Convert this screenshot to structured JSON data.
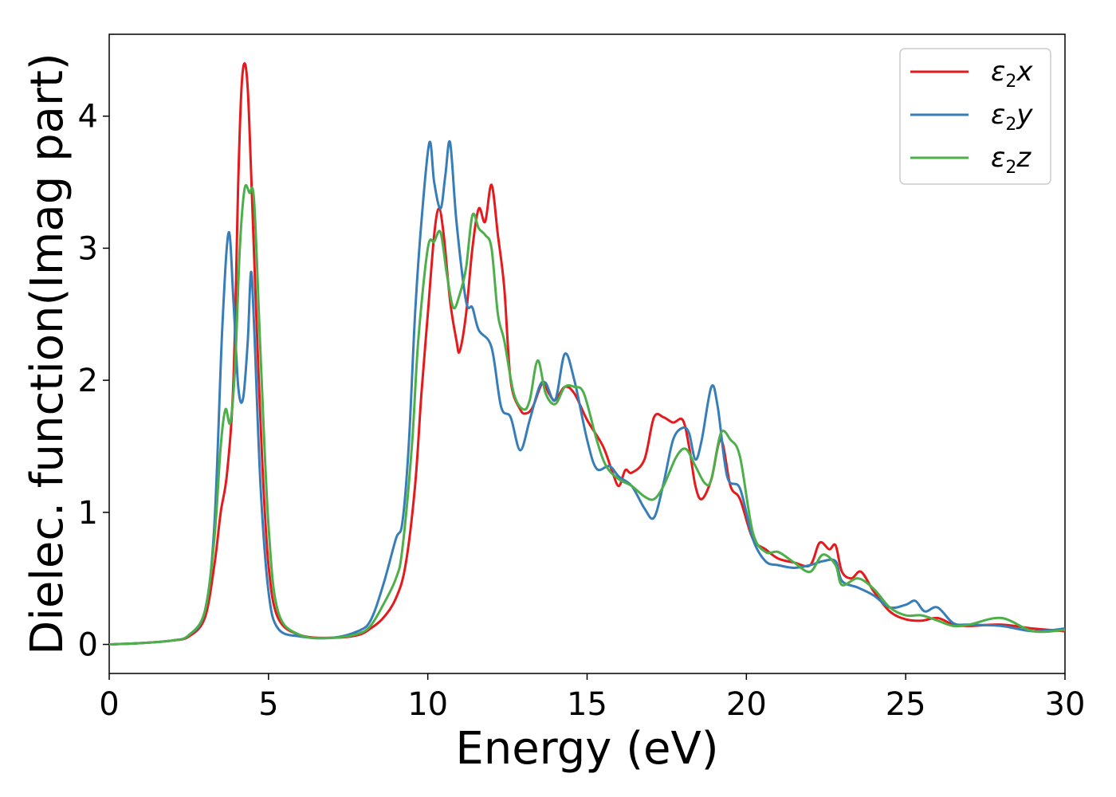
{
  "chart_data": {
    "type": "line",
    "xlabel": "Energy (eV)",
    "ylabel": "Dielec. function(Imag part)",
    "xlim": [
      0,
      30
    ],
    "ylim": [
      -0.22,
      4.62
    ],
    "xticks": [
      0,
      5,
      10,
      15,
      20,
      25,
      30
    ],
    "yticks": [
      0,
      1,
      2,
      3,
      4
    ],
    "grid": false,
    "legend_position": "top-right",
    "series": [
      {
        "name": "ε₂x",
        "label_base": "ε",
        "label_sub": "2",
        "label_var": "x",
        "color": "#e41a1c",
        "points": [
          [
            0,
            0.0
          ],
          [
            1,
            0.01
          ],
          [
            2,
            0.03
          ],
          [
            2.5,
            0.06
          ],
          [
            3,
            0.2
          ],
          [
            3.3,
            0.6
          ],
          [
            3.5,
            1.0
          ],
          [
            3.7,
            1.3
          ],
          [
            3.9,
            2.0
          ],
          [
            4.05,
            3.5
          ],
          [
            4.15,
            4.2
          ],
          [
            4.25,
            4.4
          ],
          [
            4.35,
            4.2
          ],
          [
            4.45,
            3.6
          ],
          [
            4.6,
            2.6
          ],
          [
            4.8,
            1.4
          ],
          [
            5,
            0.6
          ],
          [
            5.3,
            0.2
          ],
          [
            6,
            0.07
          ],
          [
            7,
            0.05
          ],
          [
            7.8,
            0.07
          ],
          [
            8.2,
            0.12
          ],
          [
            8.6,
            0.2
          ],
          [
            9,
            0.35
          ],
          [
            9.3,
            0.6
          ],
          [
            9.6,
            1.2
          ],
          [
            9.8,
            1.9
          ],
          [
            10,
            2.5
          ],
          [
            10.2,
            3.1
          ],
          [
            10.35,
            3.3
          ],
          [
            10.5,
            3.1
          ],
          [
            10.7,
            2.6
          ],
          [
            10.9,
            2.3
          ],
          [
            11,
            2.22
          ],
          [
            11.2,
            2.5
          ],
          [
            11.4,
            3.0
          ],
          [
            11.6,
            3.3
          ],
          [
            11.8,
            3.2
          ],
          [
            12,
            3.48
          ],
          [
            12.2,
            3.1
          ],
          [
            12.4,
            2.7
          ],
          [
            12.6,
            2.0
          ],
          [
            12.9,
            1.78
          ],
          [
            13.1,
            1.75
          ],
          [
            13.3,
            1.8
          ],
          [
            13.6,
            1.98
          ],
          [
            13.8,
            1.9
          ],
          [
            14,
            1.85
          ],
          [
            14.3,
            1.95
          ],
          [
            14.6,
            1.9
          ],
          [
            15,
            1.7
          ],
          [
            15.5,
            1.5
          ],
          [
            15.8,
            1.3
          ],
          [
            16,
            1.2
          ],
          [
            16.2,
            1.32
          ],
          [
            16.4,
            1.3
          ],
          [
            16.8,
            1.4
          ],
          [
            17.1,
            1.72
          ],
          [
            17.4,
            1.72
          ],
          [
            17.7,
            1.68
          ],
          [
            18,
            1.7
          ],
          [
            18.2,
            1.5
          ],
          [
            18.4,
            1.2
          ],
          [
            18.6,
            1.1
          ],
          [
            18.9,
            1.25
          ],
          [
            19.2,
            1.55
          ],
          [
            19.5,
            1.2
          ],
          [
            19.8,
            1.1
          ],
          [
            20.2,
            0.8
          ],
          [
            20.6,
            0.72
          ],
          [
            21,
            0.65
          ],
          [
            21.5,
            0.62
          ],
          [
            22,
            0.6
          ],
          [
            22.3,
            0.77
          ],
          [
            22.6,
            0.72
          ],
          [
            22.8,
            0.75
          ],
          [
            23,
            0.55
          ],
          [
            23.3,
            0.5
          ],
          [
            23.6,
            0.55
          ],
          [
            24,
            0.4
          ],
          [
            24.5,
            0.25
          ],
          [
            25,
            0.19
          ],
          [
            25.5,
            0.18
          ],
          [
            26,
            0.2
          ],
          [
            26.5,
            0.15
          ],
          [
            27,
            0.14
          ],
          [
            28,
            0.15
          ],
          [
            29,
            0.12
          ],
          [
            30,
            0.1
          ]
        ]
      },
      {
        "name": "ε₂y",
        "label_base": "ε",
        "label_sub": "2",
        "label_var": "y",
        "color": "#377eb8",
        "points": [
          [
            0,
            0.0
          ],
          [
            1,
            0.01
          ],
          [
            2,
            0.03
          ],
          [
            2.5,
            0.07
          ],
          [
            3,
            0.25
          ],
          [
            3.3,
            0.9
          ],
          [
            3.55,
            2.4
          ],
          [
            3.75,
            3.12
          ],
          [
            3.9,
            2.6
          ],
          [
            4.05,
            1.95
          ],
          [
            4.2,
            1.86
          ],
          [
            4.35,
            2.3
          ],
          [
            4.45,
            2.82
          ],
          [
            4.55,
            2.4
          ],
          [
            4.75,
            1.2
          ],
          [
            5,
            0.4
          ],
          [
            5.3,
            0.12
          ],
          [
            6,
            0.06
          ],
          [
            7,
            0.05
          ],
          [
            7.8,
            0.1
          ],
          [
            8.2,
            0.18
          ],
          [
            8.6,
            0.45
          ],
          [
            9,
            0.8
          ],
          [
            9.2,
            0.92
          ],
          [
            9.4,
            1.5
          ],
          [
            9.6,
            2.5
          ],
          [
            9.8,
            3.2
          ],
          [
            10.05,
            3.8
          ],
          [
            10.2,
            3.5
          ],
          [
            10.4,
            3.3
          ],
          [
            10.55,
            3.55
          ],
          [
            10.7,
            3.8
          ],
          [
            10.9,
            3.2
          ],
          [
            11.2,
            2.6
          ],
          [
            11.4,
            2.55
          ],
          [
            11.6,
            2.38
          ],
          [
            12,
            2.25
          ],
          [
            12.3,
            1.8
          ],
          [
            12.6,
            1.72
          ],
          [
            12.9,
            1.47
          ],
          [
            13.2,
            1.7
          ],
          [
            13.5,
            1.95
          ],
          [
            13.7,
            1.98
          ],
          [
            14,
            1.85
          ],
          [
            14.3,
            2.2
          ],
          [
            14.6,
            2.0
          ],
          [
            15,
            1.55
          ],
          [
            15.3,
            1.33
          ],
          [
            15.7,
            1.35
          ],
          [
            16,
            1.27
          ],
          [
            16.4,
            1.2
          ],
          [
            16.8,
            1.03
          ],
          [
            17.1,
            0.96
          ],
          [
            17.4,
            1.22
          ],
          [
            17.7,
            1.55
          ],
          [
            18,
            1.64
          ],
          [
            18.2,
            1.6
          ],
          [
            18.4,
            1.4
          ],
          [
            18.6,
            1.55
          ],
          [
            18.9,
            1.95
          ],
          [
            19.1,
            1.8
          ],
          [
            19.4,
            1.27
          ],
          [
            19.8,
            1.18
          ],
          [
            20.2,
            0.8
          ],
          [
            20.6,
            0.63
          ],
          [
            21,
            0.6
          ],
          [
            21.5,
            0.58
          ],
          [
            22,
            0.6
          ],
          [
            22.4,
            0.63
          ],
          [
            22.8,
            0.63
          ],
          [
            23,
            0.48
          ],
          [
            23.5,
            0.43
          ],
          [
            24,
            0.37
          ],
          [
            24.5,
            0.28
          ],
          [
            25,
            0.3
          ],
          [
            25.3,
            0.33
          ],
          [
            25.6,
            0.25
          ],
          [
            26,
            0.28
          ],
          [
            26.5,
            0.16
          ],
          [
            27,
            0.15
          ],
          [
            28,
            0.14
          ],
          [
            29,
            0.1
          ],
          [
            30,
            0.12
          ]
        ]
      },
      {
        "name": "ε₂z",
        "label_base": "ε",
        "label_sub": "2",
        "label_var": "z",
        "color": "#4daf4a",
        "points": [
          [
            0,
            0.0
          ],
          [
            1,
            0.01
          ],
          [
            2,
            0.03
          ],
          [
            2.5,
            0.07
          ],
          [
            3,
            0.25
          ],
          [
            3.3,
            0.8
          ],
          [
            3.5,
            1.5
          ],
          [
            3.65,
            1.78
          ],
          [
            3.8,
            1.68
          ],
          [
            3.95,
            2.1
          ],
          [
            4.1,
            3.0
          ],
          [
            4.25,
            3.45
          ],
          [
            4.4,
            3.42
          ],
          [
            4.55,
            3.35
          ],
          [
            4.75,
            2.2
          ],
          [
            5,
            0.9
          ],
          [
            5.3,
            0.25
          ],
          [
            6,
            0.07
          ],
          [
            7,
            0.05
          ],
          [
            7.8,
            0.08
          ],
          [
            8.2,
            0.14
          ],
          [
            8.6,
            0.3
          ],
          [
            9,
            0.5
          ],
          [
            9.2,
            0.72
          ],
          [
            9.5,
            1.5
          ],
          [
            9.7,
            2.3
          ],
          [
            10,
            3.0
          ],
          [
            10.2,
            3.05
          ],
          [
            10.4,
            3.12
          ],
          [
            10.6,
            2.8
          ],
          [
            10.8,
            2.55
          ],
          [
            11,
            2.65
          ],
          [
            11.2,
            2.85
          ],
          [
            11.4,
            3.25
          ],
          [
            11.6,
            3.15
          ],
          [
            11.8,
            3.1
          ],
          [
            12,
            3.0
          ],
          [
            12.2,
            2.5
          ],
          [
            12.4,
            2.3
          ],
          [
            12.7,
            1.9
          ],
          [
            13,
            1.78
          ],
          [
            13.2,
            1.85
          ],
          [
            13.45,
            2.15
          ],
          [
            13.7,
            1.9
          ],
          [
            14,
            1.82
          ],
          [
            14.3,
            1.95
          ],
          [
            14.6,
            1.95
          ],
          [
            14.9,
            1.9
          ],
          [
            15.3,
            1.55
          ],
          [
            15.6,
            1.35
          ],
          [
            16,
            1.25
          ],
          [
            16.4,
            1.2
          ],
          [
            16.8,
            1.12
          ],
          [
            17.1,
            1.1
          ],
          [
            17.4,
            1.2
          ],
          [
            17.8,
            1.42
          ],
          [
            18.1,
            1.48
          ],
          [
            18.4,
            1.35
          ],
          [
            18.7,
            1.22
          ],
          [
            18.9,
            1.25
          ],
          [
            19.2,
            1.6
          ],
          [
            19.5,
            1.55
          ],
          [
            19.8,
            1.42
          ],
          [
            20.2,
            0.85
          ],
          [
            20.6,
            0.7
          ],
          [
            21,
            0.7
          ],
          [
            21.5,
            0.62
          ],
          [
            22,
            0.55
          ],
          [
            22.4,
            0.68
          ],
          [
            22.8,
            0.6
          ],
          [
            23,
            0.45
          ],
          [
            23.5,
            0.5
          ],
          [
            24,
            0.42
          ],
          [
            24.5,
            0.28
          ],
          [
            25,
            0.22
          ],
          [
            25.5,
            0.22
          ],
          [
            26,
            0.18
          ],
          [
            26.5,
            0.14
          ],
          [
            27,
            0.15
          ],
          [
            28,
            0.2
          ],
          [
            29,
            0.1
          ],
          [
            30,
            0.11
          ]
        ]
      }
    ]
  }
}
